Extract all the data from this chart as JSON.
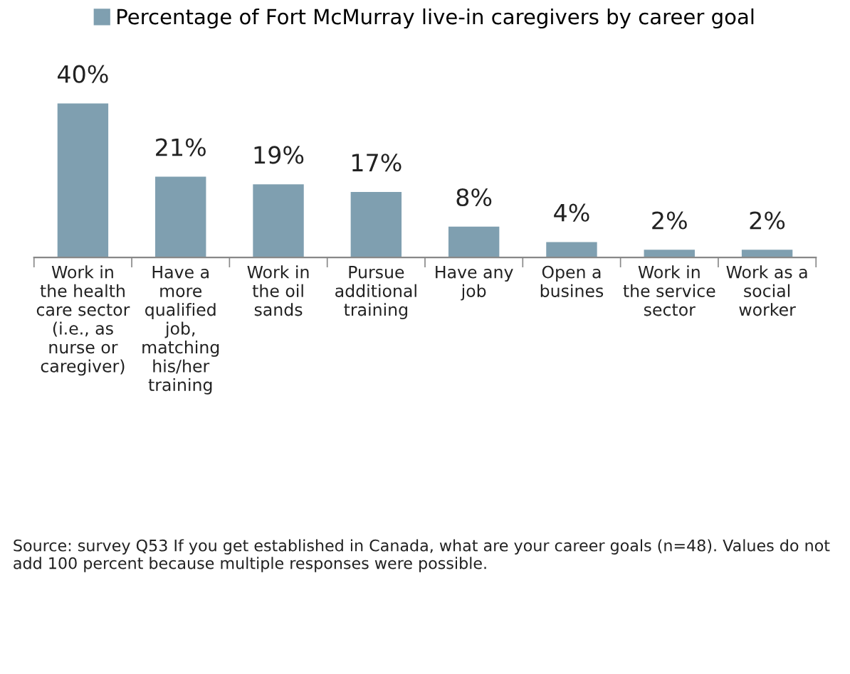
{
  "chart_data": {
    "type": "bar",
    "categories": [
      "Work in\nthe health\ncare sector\n(i.e., as\nnurse or\ncaregiver)",
      "Have a\nmore\nqualified\njob,\nmatching\nhis/her\ntraining",
      "Work in\nthe oil\nsands",
      "Pursue\nadditional\ntraining",
      "Have any\njob",
      "Open a\nbusines",
      "Work in\nthe service\nsector",
      "Work as a\nsocial\nworker"
    ],
    "series": [
      {
        "name": "Percentage of Fort McMurray live-in caregivers by career goal",
        "color": "#7f9fb0",
        "values": [
          40,
          21,
          19,
          17,
          8,
          4,
          2,
          2
        ],
        "value_labels": [
          "40%",
          "21%",
          "19%",
          "17%",
          "8%",
          "4%",
          "2%",
          "2%"
        ]
      }
    ],
    "legend": "top",
    "grid": false,
    "annotations": [
      "Source: survey Q53 If you get established in Canada, what are your career goals (n=48). Values do not add 100 percent because multiple responses were possible."
    ]
  }
}
